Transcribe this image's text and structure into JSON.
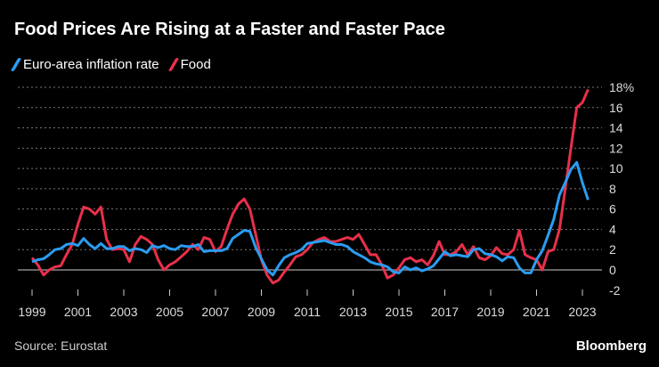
{
  "title": "Food Prices Are Rising at a Faster and Faster Pace",
  "source": "Source: Eurostat",
  "brand": "Bloomberg",
  "chart_data": {
    "type": "line",
    "title": "Food Prices Are Rising at a Faster and Faster Pace",
    "xlabel": "",
    "ylabel": "",
    "xlim": [
      1999,
      2023.4
    ],
    "ylim": [
      -2,
      18
    ],
    "grid": true,
    "legend": "top-left",
    "x_ticks": [
      "1999",
      "2001",
      "2003",
      "2005",
      "2007",
      "2009",
      "2011",
      "2013",
      "2015",
      "2017",
      "2019",
      "2021",
      "2023"
    ],
    "y_ticks": [
      "18%",
      "16",
      "14",
      "12",
      "10",
      "8",
      "6",
      "4",
      "2",
      "0",
      "-2"
    ],
    "y_tick_values": [
      18,
      16,
      14,
      12,
      10,
      8,
      6,
      4,
      2,
      0,
      -2
    ],
    "x_start": 1999,
    "x_step": 0.25,
    "series": [
      {
        "name": "Euro-area inflation rate",
        "color": "#2b9cf2",
        "values": [
          0.8,
          1.0,
          1.1,
          1.5,
          2.0,
          2.1,
          2.5,
          2.6,
          2.4,
          3.1,
          2.5,
          2.1,
          2.6,
          2.1,
          2.1,
          2.3,
          2.3,
          1.9,
          2.1,
          2.0,
          1.7,
          2.4,
          2.2,
          2.4,
          2.1,
          2.0,
          2.4,
          2.3,
          2.3,
          2.5,
          1.8,
          1.9,
          1.9,
          1.9,
          2.1,
          3.1,
          3.5,
          3.9,
          3.8,
          2.2,
          1.1,
          0.0,
          -0.5,
          0.4,
          1.2,
          1.5,
          1.7,
          2.0,
          2.6,
          2.7,
          2.8,
          2.9,
          2.7,
          2.5,
          2.5,
          2.3,
          1.8,
          1.5,
          1.2,
          0.8,
          0.6,
          0.5,
          0.3,
          -0.2,
          -0.3,
          0.3,
          0.0,
          0.2,
          -0.1,
          0.1,
          0.4,
          1.1,
          1.8,
          1.4,
          1.5,
          1.4,
          1.3,
          2.0,
          2.1,
          1.6,
          1.5,
          1.3,
          0.9,
          1.3,
          1.2,
          0.2,
          -0.3,
          -0.3,
          1.0,
          1.9,
          3.4,
          5.0,
          7.4,
          8.6,
          9.9,
          10.6,
          8.6,
          6.9
        ]
      },
      {
        "name": "Food",
        "color": "#e8304a",
        "values": [
          1.2,
          0.5,
          -0.5,
          0.0,
          0.3,
          0.4,
          1.5,
          2.5,
          4.5,
          6.2,
          6.0,
          5.5,
          6.2,
          3.0,
          2.0,
          2.1,
          2.0,
          0.8,
          2.5,
          3.3,
          3.0,
          2.5,
          1.0,
          0.0,
          0.5,
          0.8,
          1.3,
          1.8,
          2.5,
          2.0,
          3.2,
          3.0,
          1.8,
          2.3,
          4.0,
          5.5,
          6.5,
          7.0,
          6.0,
          3.5,
          1.0,
          -0.5,
          -1.3,
          -1.0,
          -0.2,
          0.5,
          1.3,
          1.5,
          2.0,
          2.7,
          3.0,
          3.2,
          2.8,
          2.8,
          3.0,
          3.2,
          3.0,
          3.5,
          2.5,
          1.5,
          1.5,
          0.5,
          -0.8,
          -0.5,
          0.2,
          1.0,
          1.2,
          0.8,
          1.0,
          0.5,
          1.4,
          2.8,
          1.5,
          1.5,
          1.8,
          2.5,
          1.5,
          2.3,
          1.2,
          1.0,
          1.4,
          2.2,
          1.6,
          1.5,
          2.0,
          3.9,
          1.5,
          1.2,
          1.0,
          0.0,
          1.8,
          2.0,
          4.0,
          8.0,
          12.0,
          16.0,
          16.5,
          17.8
        ]
      }
    ]
  }
}
